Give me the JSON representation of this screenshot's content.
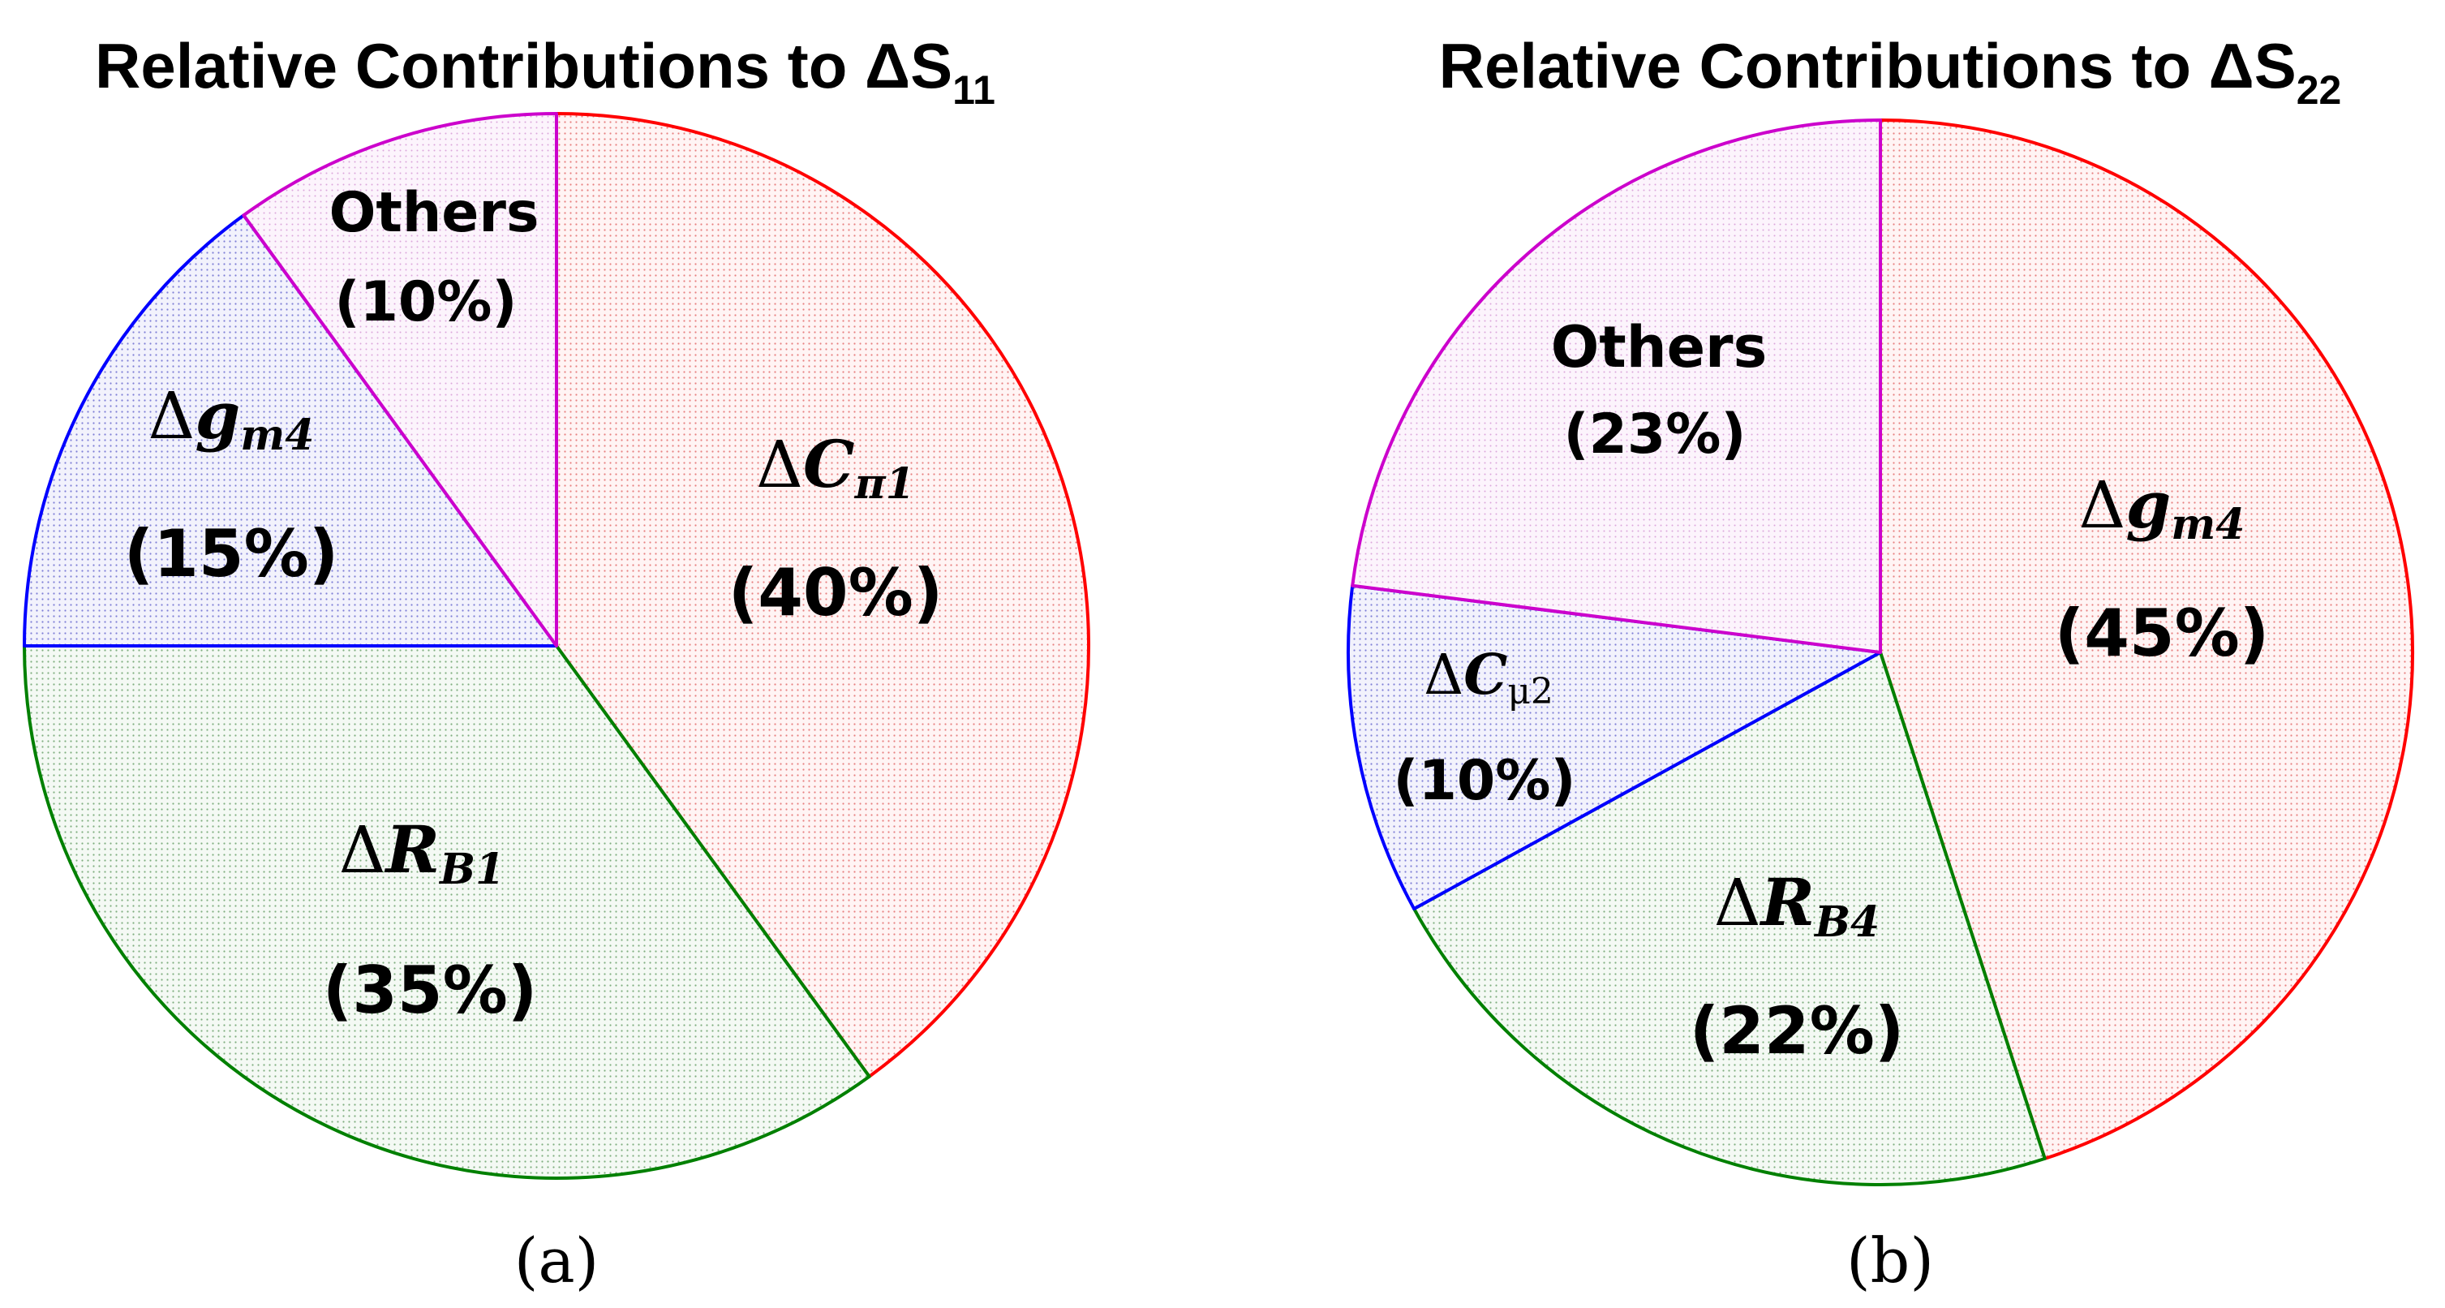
{
  "chart_data": [
    {
      "type": "pie",
      "panel": "(a)",
      "title": "Relative Contributions to ΔS",
      "title_sub": "11",
      "start": "12 o'clock, clockwise",
      "slices": [
        {
          "key": "cpi1",
          "delta": "Δ",
          "sym": "C",
          "sub": "π1",
          "value": 40,
          "pct": "(40%)",
          "color": "#ff0000",
          "fill": "#fff0f0"
        },
        {
          "key": "rb1",
          "delta": "Δ",
          "sym": "R",
          "sub": "B1",
          "value": 35,
          "pct": "(35%)",
          "color": "#008000",
          "fill": "#f0f7f0"
        },
        {
          "key": "gm4",
          "delta": "Δ",
          "sym": "g",
          "sub": "m4",
          "value": 15,
          "pct": "(15%)",
          "color": "#0000ff",
          "fill": "#eeeefa"
        },
        {
          "key": "others",
          "name": "Others",
          "value": 10,
          "pct": "(10%)",
          "color": "#cc00cc",
          "fill": "#fbf0fb"
        }
      ]
    },
    {
      "type": "pie",
      "panel": "(b)",
      "title": "Relative Contributions to ΔS",
      "title_sub": "22",
      "start": "12 o'clock, clockwise",
      "slices": [
        {
          "key": "gm4",
          "delta": "Δ",
          "sym": "g",
          "sub": "m4",
          "value": 45,
          "pct": "(45%)",
          "color": "#ff0000",
          "fill": "#fff0f0"
        },
        {
          "key": "rb4",
          "delta": "Δ",
          "sym": "R",
          "sub": "B4",
          "value": 22,
          "pct": "(22%)",
          "color": "#008000",
          "fill": "#f0f7f0"
        },
        {
          "key": "cmu2",
          "delta": "Δ",
          "sym": "C",
          "sub": "μ2",
          "value": 10,
          "pct": "(10%)",
          "color": "#0000ff",
          "fill": "#eeeefa"
        },
        {
          "key": "others",
          "name": "Others",
          "value": 23,
          "pct": "(23%)",
          "color": "#cc00cc",
          "fill": "#fbf0fb"
        }
      ]
    }
  ]
}
